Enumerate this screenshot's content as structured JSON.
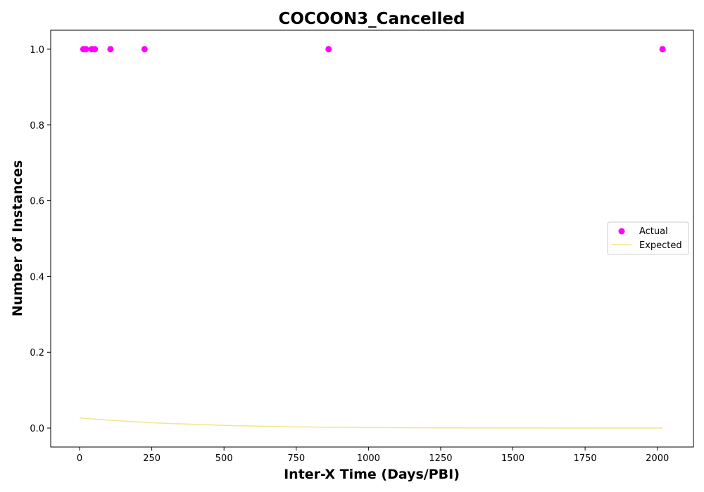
{
  "chart_data": {
    "type": "scatter",
    "title": "COCOON3_Cancelled",
    "xlabel": "Inter-X Time (Days/PBI)",
    "ylabel": "Number of Instances",
    "xlim": [
      -100,
      2125
    ],
    "ylim": [
      -0.05,
      1.05
    ],
    "x_ticks": [
      0,
      250,
      500,
      750,
      1000,
      1250,
      1500,
      1750,
      2000
    ],
    "x_tick_labels": [
      "0",
      "250",
      "500",
      "750",
      "1000",
      "1250",
      "1500",
      "1750",
      "2000"
    ],
    "y_ticks": [
      0.0,
      0.2,
      0.4,
      0.6,
      0.8,
      1.0
    ],
    "y_tick_labels": [
      "0.0",
      "0.2",
      "0.4",
      "0.6",
      "0.8",
      "1.0"
    ],
    "grid": false,
    "legend_position": "center-right",
    "series": [
      {
        "name": "Actual",
        "kind": "scatter",
        "color": "#ff00ff",
        "x": [
          13,
          22,
          42,
          53,
          107,
          225,
          862,
          2018
        ],
        "y": [
          1,
          1,
          1,
          1,
          1,
          1,
          1,
          1
        ]
      },
      {
        "name": "Expected",
        "kind": "line",
        "color": "#f0e68c",
        "x": [
          0,
          100,
          250,
          500,
          750,
          1000,
          1250,
          1500,
          1750,
          2018
        ],
        "y": [
          0.027,
          0.021,
          0.014,
          0.007,
          0.003,
          0.0015,
          0.0007,
          0.0003,
          0.0001,
          0.0
        ]
      }
    ]
  }
}
